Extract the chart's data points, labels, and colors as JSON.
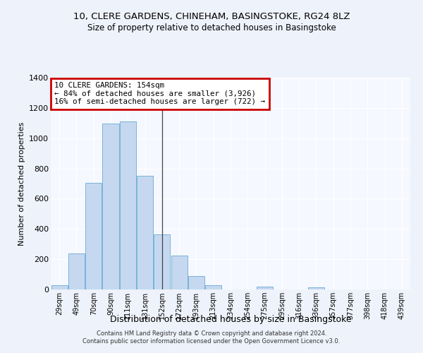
{
  "title1": "10, CLERE GARDENS, CHINEHAM, BASINGSTOKE, RG24 8LZ",
  "title2": "Size of property relative to detached houses in Basingstoke",
  "xlabel": "Distribution of detached houses by size in Basingstoke",
  "ylabel": "Number of detached properties",
  "categories": [
    "29sqm",
    "49sqm",
    "70sqm",
    "90sqm",
    "111sqm",
    "131sqm",
    "152sqm",
    "172sqm",
    "193sqm",
    "213sqm",
    "234sqm",
    "254sqm",
    "275sqm",
    "295sqm",
    "316sqm",
    "336sqm",
    "357sqm",
    "377sqm",
    "398sqm",
    "418sqm",
    "439sqm"
  ],
  "values": [
    30,
    240,
    705,
    1095,
    1110,
    750,
    365,
    222,
    90,
    30,
    0,
    0,
    18,
    0,
    0,
    12,
    0,
    0,
    0,
    0,
    0
  ],
  "bar_color": "#c5d8f0",
  "bar_edge_color": "#6aaad4",
  "vline_x": 6,
  "annotation_text": "10 CLERE GARDENS: 154sqm\n← 84% of detached houses are smaller (3,926)\n16% of semi-detached houses are larger (722) →",
  "annotation_box_color": "#ffffff",
  "annotation_box_edge": "#cc0000",
  "ylim": [
    0,
    1400
  ],
  "yticks": [
    0,
    200,
    400,
    600,
    800,
    1000,
    1200,
    1400
  ],
  "footer1": "Contains HM Land Registry data © Crown copyright and database right 2024.",
  "footer2": "Contains public sector information licensed under the Open Government Licence v3.0.",
  "bg_color": "#eef2fa",
  "plot_bg_color": "#f5f8ff"
}
